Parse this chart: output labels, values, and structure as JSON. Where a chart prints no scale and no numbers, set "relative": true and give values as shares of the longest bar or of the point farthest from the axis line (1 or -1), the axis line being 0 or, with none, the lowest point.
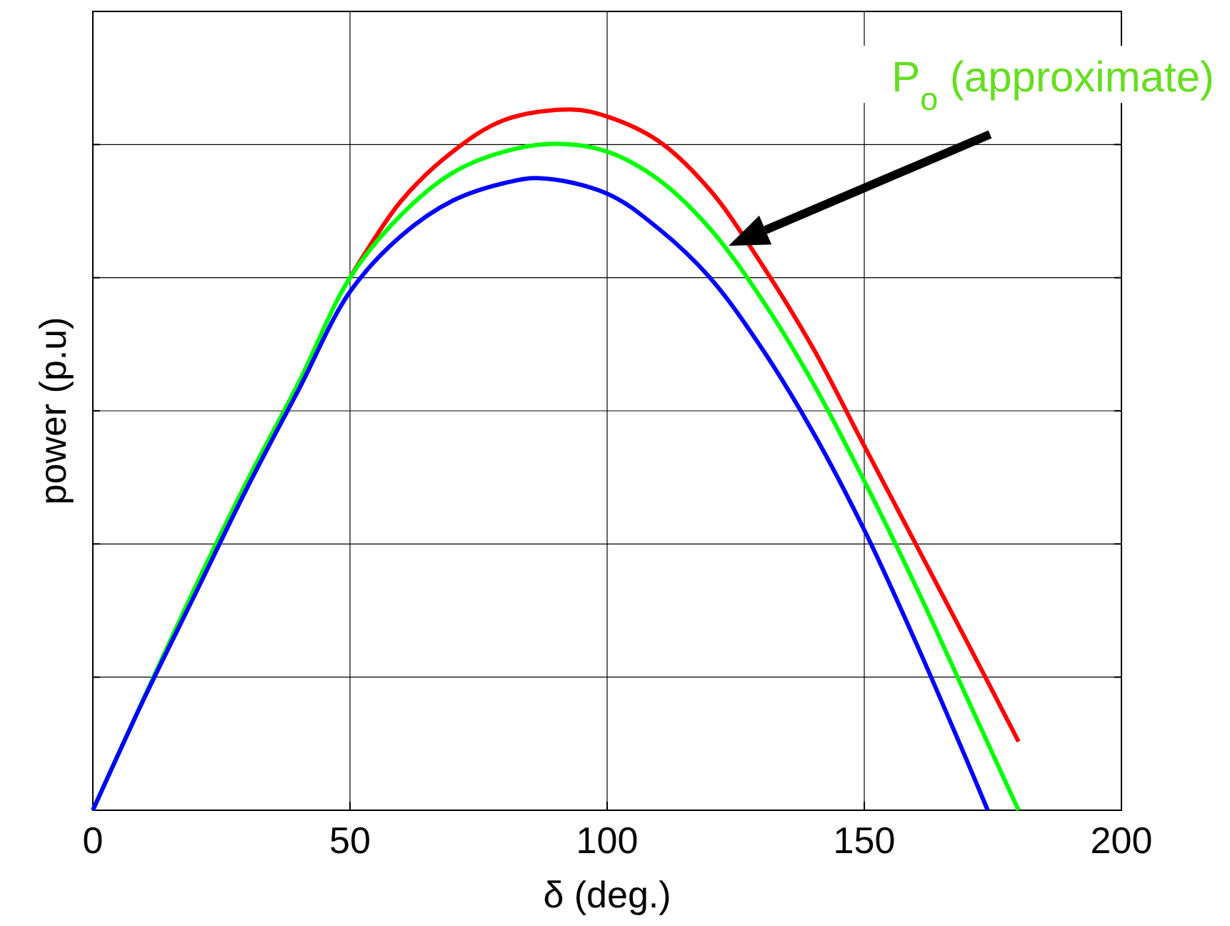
{
  "chart_data": {
    "type": "line",
    "relative": true,
    "xlabel": "δ (deg.)",
    "ylabel": "power (p.u)",
    "xlim": [
      0,
      200
    ],
    "xticks": [
      0,
      50,
      100,
      150,
      200
    ],
    "grid": true,
    "line_style": "solid",
    "annotations": [
      "P$_{o}$ (approximate)"
    ],
    "series": [
      {
        "color": "#ff0000",
        "x": [
          50,
          60,
          70,
          80,
          93,
          100,
          110,
          120,
          130,
          140,
          150,
          160,
          170,
          180
        ],
        "values": [
          0.76,
          0.87,
          0.94,
          0.985,
          1,
          0.99,
          0.955,
          0.885,
          0.78,
          0.66,
          0.52,
          0.38,
          0.24,
          0.098
        ]
      },
      {
        "color": "#00ff00",
        "x": [
          0,
          20,
          30,
          40,
          50,
          60,
          70,
          80,
          90,
          100,
          110,
          120,
          130,
          140,
          150,
          160,
          170,
          180
        ],
        "values": [
          0,
          0.32,
          0.47,
          0.61,
          0.76,
          0.85,
          0.91,
          0.94,
          0.951,
          0.94,
          0.9,
          0.83,
          0.73,
          0.61,
          0.47,
          0.32,
          0.16,
          0
        ]
      },
      {
        "color": "#0000ff",
        "x": [
          0,
          10,
          20,
          30,
          40,
          50,
          60,
          70,
          80,
          87,
          100,
          110,
          120,
          130,
          140,
          150,
          160,
          170,
          174
        ],
        "values": [
          0,
          0.16,
          0.31,
          0.46,
          0.6,
          0.74,
          0.82,
          0.87,
          0.895,
          0.902,
          0.88,
          0.83,
          0.76,
          0.66,
          0.54,
          0.4,
          0.24,
          0.07,
          0
        ]
      }
    ]
  }
}
